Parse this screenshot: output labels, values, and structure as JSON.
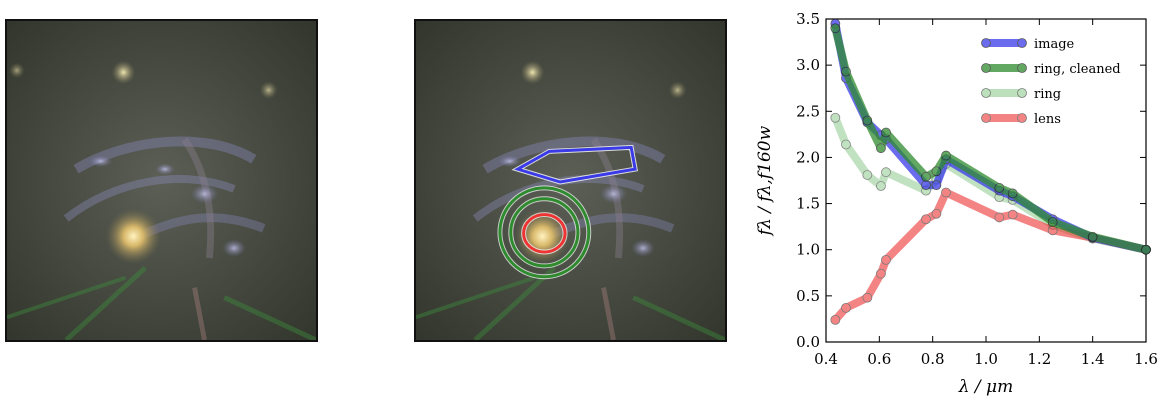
{
  "chart_data": {
    "type": "line",
    "xlabel": "λ / μm",
    "ylabel": "fλ / fλ,f160w",
    "xlim": [
      0.4,
      1.6
    ],
    "ylim": [
      0.0,
      3.5
    ],
    "xticks": [
      0.4,
      0.6,
      0.8,
      1.0,
      1.2,
      1.4,
      1.6
    ],
    "yticks": [
      0.0,
      0.5,
      1.0,
      1.5,
      2.0,
      2.5,
      3.0,
      3.5
    ],
    "xtick_labels": [
      "0.4",
      "0.6",
      "0.8",
      "1.0",
      "1.2",
      "1.4",
      "1.6"
    ],
    "ytick_labels": [
      "0.0",
      "0.5",
      "1.0",
      "1.5",
      "2.0",
      "2.5",
      "3.0",
      "3.5"
    ],
    "legend_position": "top-right",
    "series": [
      {
        "name": "image",
        "color": "#3a3ae8",
        "opacity": 0.75,
        "x": [
          0.435,
          0.475,
          0.555,
          0.606,
          0.625,
          0.775,
          0.814,
          0.85,
          1.05,
          1.1,
          1.25,
          1.4,
          1.6
        ],
        "y": [
          3.45,
          2.86,
          2.38,
          2.24,
          2.2,
          1.7,
          1.7,
          1.98,
          1.64,
          1.58,
          1.33,
          1.13,
          1.0
        ]
      },
      {
        "name": "ring, cleaned",
        "color": "#2e8b2e",
        "opacity": 0.75,
        "x": [
          0.435,
          0.475,
          0.555,
          0.606,
          0.625,
          0.775,
          0.814,
          0.85,
          1.05,
          1.1,
          1.25,
          1.4,
          1.6
        ],
        "y": [
          3.4,
          2.93,
          2.4,
          2.1,
          2.27,
          1.79,
          1.85,
          2.02,
          1.67,
          1.61,
          1.3,
          1.14,
          1.0
        ]
      },
      {
        "name": "ring",
        "color": "#8fcc8f",
        "opacity": 0.55,
        "x": [
          0.435,
          0.475,
          0.555,
          0.606,
          0.625,
          0.775,
          0.814,
          0.85,
          1.05,
          1.1,
          1.25,
          1.4,
          1.6
        ],
        "y": [
          2.43,
          2.14,
          1.81,
          1.69,
          1.84,
          1.64,
          1.76,
          1.93,
          1.57,
          1.54,
          1.27,
          1.12,
          1.0
        ]
      },
      {
        "name": "lens",
        "color": "#ee3333",
        "opacity": 0.6,
        "x": [
          0.435,
          0.475,
          0.555,
          0.606,
          0.625,
          0.775,
          0.814,
          0.85,
          1.05,
          1.1,
          1.25,
          1.4,
          1.6
        ],
        "y": [
          0.24,
          0.37,
          0.48,
          0.74,
          0.89,
          1.33,
          1.39,
          1.62,
          1.35,
          1.38,
          1.21,
          1.13,
          1.0
        ]
      }
    ]
  },
  "images": {
    "left_panel": "galaxy-image",
    "middle_panel": "galaxy-image-with-apertures",
    "aperture_colors": {
      "polygon": "#3a3ae8",
      "rings": "#2e8b2e",
      "lens": "#ee3333"
    }
  }
}
